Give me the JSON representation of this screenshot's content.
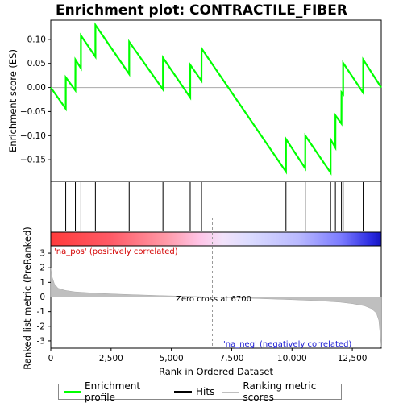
{
  "chart_data": {
    "type": "line",
    "title": "Enrichment plot: CONTRACTILE_FIBER",
    "top_panel": {
      "ylabel": "Enrichment score (ES)",
      "ylim": [
        -0.195,
        0.14
      ],
      "yticks": [
        -0.15,
        -0.1,
        -0.05,
        0.0,
        0.05,
        0.1
      ],
      "ytick_labels": [
        "−0.15",
        "−0.10",
        "−0.05",
        "0.00",
        "0.05",
        "0.10"
      ],
      "series_color": "#00ff00",
      "series": [
        {
          "x": [
            0,
            620,
            621,
            1020,
            1021,
            1250,
            1251,
            1850,
            1851,
            3250,
            3251,
            4650,
            4651,
            5780,
            5781,
            6250,
            6251,
            9750,
            9751,
            10550,
            10551,
            11600,
            11601,
            11800,
            11801,
            12050,
            12051,
            12120,
            12121,
            12950,
            12951,
            13700
          ],
          "y": [
            0.0,
            -0.044,
            0.021,
            -0.006,
            0.058,
            0.04,
            0.108,
            0.064,
            0.13,
            0.028,
            0.095,
            -0.004,
            0.062,
            -0.021,
            0.047,
            0.014,
            0.081,
            -0.175,
            -0.107,
            -0.168,
            -0.1,
            -0.177,
            -0.108,
            -0.125,
            -0.058,
            -0.075,
            -0.01,
            -0.014,
            0.051,
            -0.011,
            0.058,
            0.0
          ]
        }
      ]
    },
    "hits": [
      620,
      1020,
      1250,
      1850,
      3250,
      4650,
      5780,
      6250,
      9750,
      10550,
      11600,
      11800,
      12050,
      12120,
      12950
    ],
    "bottom_panel": {
      "ylabel": "Ranked list metric (PreRanked)",
      "xlabel": "Rank in Ordered Dataset",
      "xlim": [
        0,
        13700
      ],
      "ylim": [
        -3.5,
        3.5
      ],
      "xticks": [
        0,
        2500,
        5000,
        7500,
        10000,
        12500
      ],
      "xtick_labels": [
        "0",
        "2,500",
        "5,000",
        "7,500",
        "10,000",
        "12,500"
      ],
      "yticks": [
        -3,
        -2,
        -1,
        0,
        1,
        2,
        3
      ],
      "ytick_labels": [
        "-3",
        "-2",
        "-1",
        "0",
        "1",
        "2",
        "3"
      ],
      "metric_profile": {
        "rank": [
          0,
          50,
          150,
          300,
          600,
          1000,
          2000,
          3000,
          4500,
          6700,
          8500,
          10000,
          11000,
          12000,
          12500,
          13000,
          13300,
          13500,
          13600,
          13650,
          13700
        ],
        "value": [
          2.0,
          1.4,
          0.9,
          0.6,
          0.45,
          0.35,
          0.25,
          0.18,
          0.1,
          0.0,
          -0.1,
          -0.18,
          -0.25,
          -0.35,
          -0.45,
          -0.6,
          -0.8,
          -1.1,
          -1.6,
          -2.5,
          -3.4
        ]
      },
      "zero_cross_rank": 6700,
      "annotations": {
        "positive": "'na_pos' (positively correlated)",
        "negative": "'na_neg' (negatively correlated)",
        "zero_cross": "Zero cross at 6700"
      }
    },
    "colors": {
      "pos_label": "#d40000",
      "neg_label": "#1a1ad4",
      "metric_fill": "#bfbfbf",
      "zero_line": "#999999"
    },
    "legend": {
      "placement": "bottom",
      "items": [
        {
          "label": "Enrichment profile",
          "color": "#00ff00"
        },
        {
          "label": "Hits",
          "color": "#000000"
        },
        {
          "label": "Ranking metric scores",
          "color": "#bfbfbf"
        }
      ]
    }
  }
}
